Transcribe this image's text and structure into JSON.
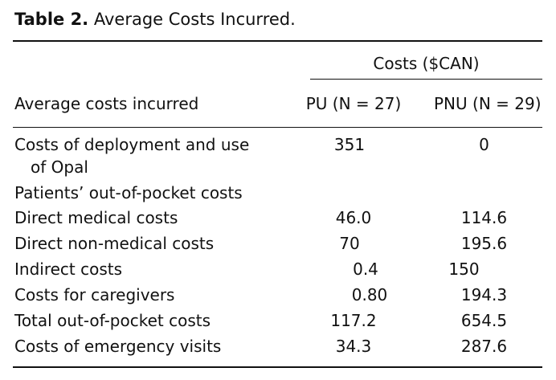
{
  "caption": {
    "label": "Table 2.",
    "title": "Average Costs Incurred."
  },
  "table": {
    "spanning_header": "Costs ($CAN)",
    "stub_header": "Average costs incurred",
    "columns": [
      "PU (N = 27)",
      "PNU (N = 29)"
    ],
    "rows": [
      {
        "label": "Costs of deployment and use",
        "label_cont": "of Opal",
        "pu": "351",
        "pnu": "0"
      },
      {
        "label": "Patients’ out-of-pocket costs",
        "pu": "",
        "pnu": ""
      },
      {
        "label": "Direct medical costs",
        "pu": "46.0",
        "pnu": "114.6"
      },
      {
        "label": "Direct non-medical costs",
        "pu": "70",
        "pnu": "195.6"
      },
      {
        "label": "Indirect costs",
        "pu": "0.4",
        "pnu": "150"
      },
      {
        "label": "Costs for caregivers",
        "pu": "0.80",
        "pnu": "194.3"
      },
      {
        "label": "Total out-of-pocket costs",
        "pu": "117.2",
        "pnu": "654.5"
      },
      {
        "label": "Costs of emergency visits",
        "pu": "34.3",
        "pnu": "287.6"
      }
    ]
  }
}
